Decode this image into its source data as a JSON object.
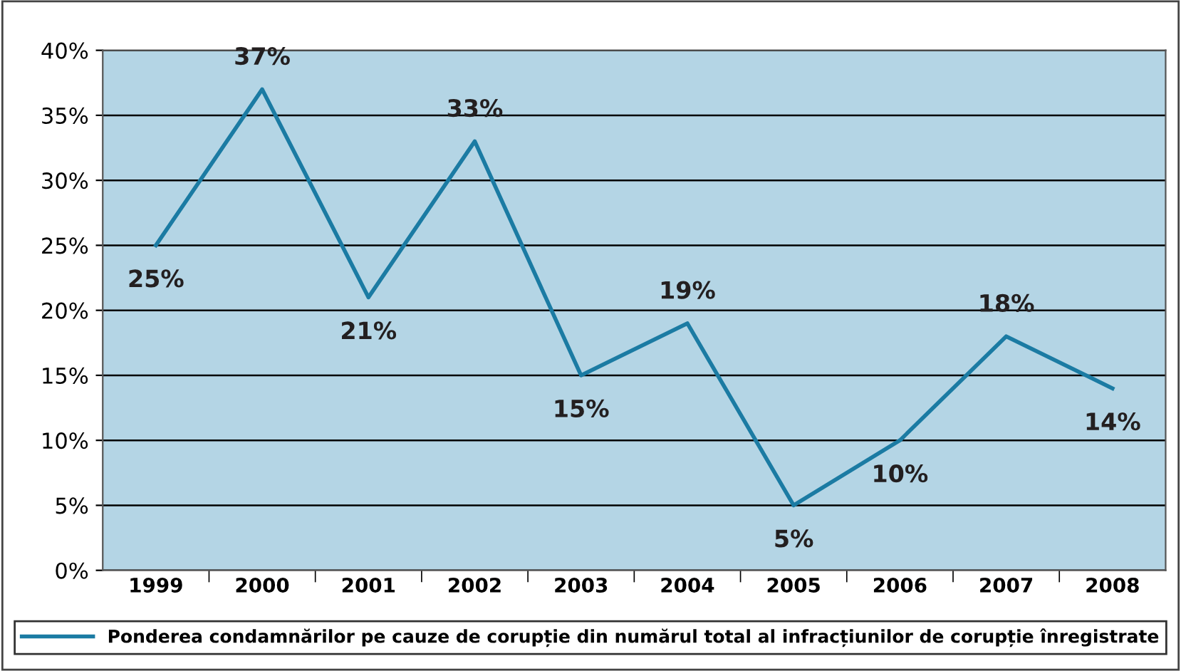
{
  "chart_data": {
    "type": "line",
    "categories": [
      "1999",
      "2000",
      "2001",
      "2002",
      "2003",
      "2004",
      "2005",
      "2006",
      "2007",
      "2008"
    ],
    "series": [
      {
        "name": "Ponderea condamnărilor pe cauze de corupție din numărul total al infracțiunilor de corupție înregistrate",
        "color": "#1b7ba3",
        "values": [
          25,
          37,
          21,
          33,
          15,
          19,
          5,
          10,
          18,
          14
        ],
        "value_labels": [
          "25%",
          "37%",
          "21%",
          "33%",
          "15%",
          "19%",
          "5%",
          "10%",
          "18%",
          "14%"
        ]
      }
    ],
    "ylim": [
      0,
      40
    ],
    "yticks": [
      {
        "value": 0,
        "label": "0%"
      },
      {
        "value": 5,
        "label": "5%"
      },
      {
        "value": 10,
        "label": "10%"
      },
      {
        "value": 15,
        "label": "15%"
      },
      {
        "value": 20,
        "label": "20%"
      },
      {
        "value": 25,
        "label": "25%"
      },
      {
        "value": 30,
        "label": "30%"
      },
      {
        "value": 35,
        "label": "35%"
      },
      {
        "value": 40,
        "label": "40%"
      }
    ],
    "grid": "y",
    "legend": "bottom",
    "marker": "none",
    "line_style": "solid"
  }
}
